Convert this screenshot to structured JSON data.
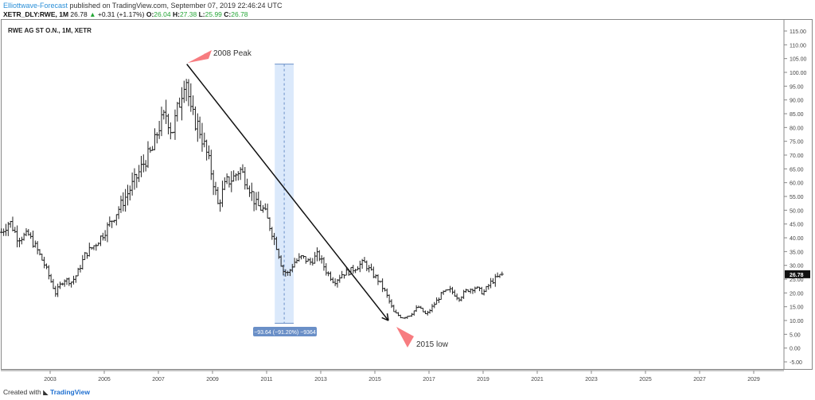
{
  "header": {
    "author": "Elliottwave-Forecast",
    "published": " published on TradingView.com, September 07, 2019 22:46:24 UTC",
    "ticker": "XETR_DLY:RWE, 1M",
    "last": "26.78",
    "change": "+0.31 (+1.17%)",
    "o_label": "O:",
    "o": "26.04",
    "h_label": "H:",
    "h": "27.38",
    "l_label": "L:",
    "l": "25.99",
    "c_label": "C:",
    "c": "26.78"
  },
  "symbol_label": "RWE AG ST O.N., 1M, XETR",
  "footer": {
    "created": "Created with",
    "brand": "TradingView"
  },
  "chart_data": {
    "type": "ohlc-bar",
    "interval": "1M",
    "xlim": [
      2001.2,
      2030
    ],
    "ylim": [
      -8,
      119
    ],
    "x_ticks": [
      "2003",
      "2005",
      "2007",
      "2009",
      "2011",
      "2013",
      "2015",
      "2017",
      "2019",
      "2021",
      "2023",
      "2025",
      "2027",
      "2029"
    ],
    "y_ticks": [
      "115.00",
      "110.00",
      "105.00",
      "100.00",
      "95.00",
      "90.00",
      "85.00",
      "80.00",
      "75.00",
      "70.00",
      "65.00",
      "60.00",
      "55.00",
      "50.00",
      "45.00",
      "40.00",
      "35.00",
      "30.00",
      "25.00",
      "20.00",
      "15.00",
      "10.00",
      "5.00",
      "0.00",
      "-5.00"
    ],
    "last_price_label": "26.78",
    "approx_close_path": [
      [
        2001.2,
        42
      ],
      [
        2001.5,
        46
      ],
      [
        2001.8,
        40
      ],
      [
        2002.2,
        41
      ],
      [
        2002.5,
        36
      ],
      [
        2002.8,
        30
      ],
      [
        2003.0,
        25
      ],
      [
        2003.2,
        20
      ],
      [
        2003.5,
        25
      ],
      [
        2003.8,
        24
      ],
      [
        2004.0,
        27
      ],
      [
        2004.3,
        34
      ],
      [
        2004.7,
        38
      ],
      [
        2005.0,
        42
      ],
      [
        2005.5,
        50
      ],
      [
        2005.8,
        55
      ],
      [
        2006.2,
        62
      ],
      [
        2006.5,
        68
      ],
      [
        2006.8,
        72
      ],
      [
        2007.0,
        80
      ],
      [
        2007.3,
        85
      ],
      [
        2007.5,
        78
      ],
      [
        2007.8,
        90
      ],
      [
        2008.0,
        100
      ],
      [
        2008.2,
        85
      ],
      [
        2008.5,
        80
      ],
      [
        2008.8,
        70
      ],
      [
        2009.0,
        62
      ],
      [
        2009.2,
        52
      ],
      [
        2009.5,
        60
      ],
      [
        2009.8,
        62
      ],
      [
        2010.0,
        65
      ],
      [
        2010.3,
        60
      ],
      [
        2010.6,
        52
      ],
      [
        2010.9,
        50
      ],
      [
        2011.2,
        42
      ],
      [
        2011.4,
        36
      ],
      [
        2011.6,
        28
      ],
      [
        2011.8,
        27
      ],
      [
        2012.0,
        31
      ],
      [
        2012.3,
        33
      ],
      [
        2012.6,
        31
      ],
      [
        2012.9,
        34
      ],
      [
        2013.2,
        28
      ],
      [
        2013.5,
        24
      ],
      [
        2013.8,
        27
      ],
      [
        2014.1,
        28
      ],
      [
        2014.4,
        30
      ],
      [
        2014.6,
        31
      ],
      [
        2014.9,
        27
      ],
      [
        2015.1,
        25
      ],
      [
        2015.4,
        20
      ],
      [
        2015.7,
        13
      ],
      [
        2016.0,
        11
      ],
      [
        2016.3,
        12
      ],
      [
        2016.6,
        15
      ],
      [
        2016.9,
        12
      ],
      [
        2017.2,
        16
      ],
      [
        2017.5,
        20
      ],
      [
        2017.8,
        21
      ],
      [
        2018.1,
        18
      ],
      [
        2018.4,
        21
      ],
      [
        2018.7,
        22
      ],
      [
        2019.0,
        20
      ],
      [
        2019.3,
        24
      ],
      [
        2019.7,
        26.78
      ]
    ],
    "annotations": {
      "peak_label": "2008 Peak",
      "low_label": "2015 low",
      "measure_label": "−93.64 (−91.20%) −9364"
    },
    "trend_arrow": {
      "from": [
        2008.05,
        103
      ],
      "to": [
        2015.5,
        10
      ]
    },
    "measure_range": {
      "x": [
        2011.3,
        2012.0
      ],
      "y": [
        103,
        9
      ]
    },
    "colors": {
      "bars": "#222222",
      "annotation": "#f77c80",
      "measure_fill": "#dbe9fb",
      "measure_label": "#6a8fc7",
      "up": "#26a637"
    }
  }
}
